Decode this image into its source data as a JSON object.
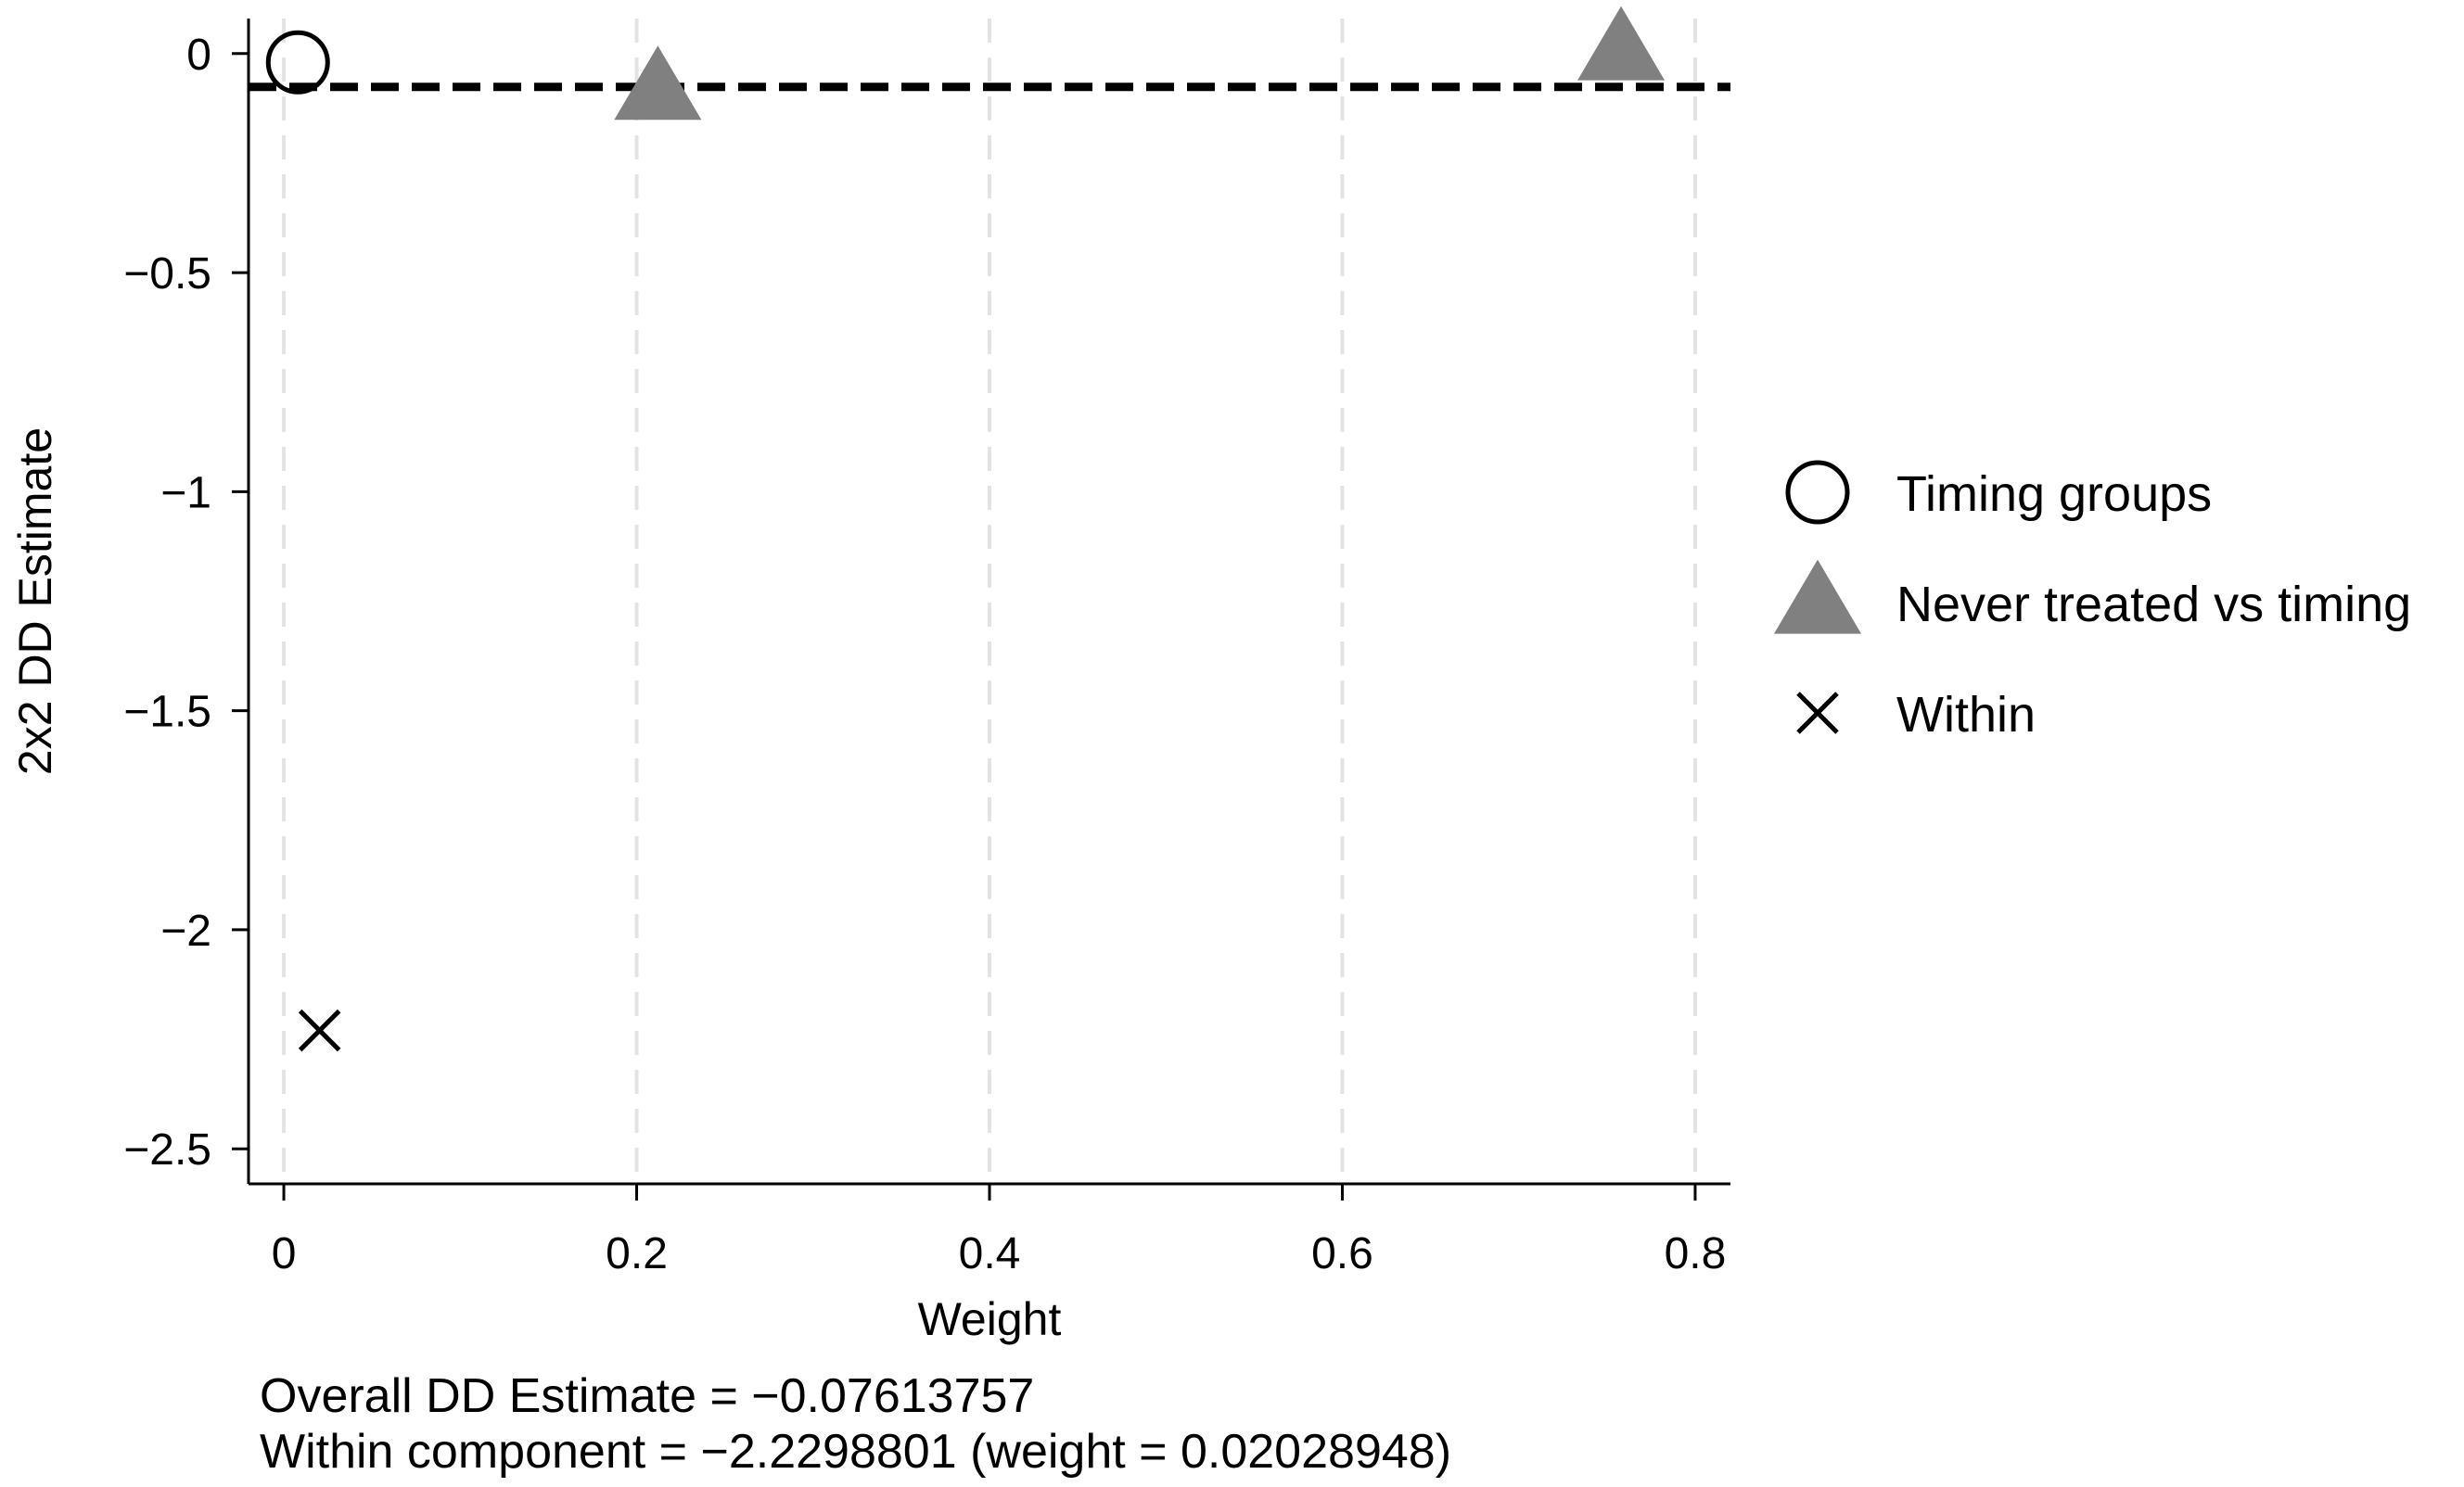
{
  "chart_data": {
    "type": "scatter",
    "xlabel": "Weight",
    "ylabel": "2x2 DD Estimate",
    "xlim": [
      -0.02,
      0.82
    ],
    "ylim": [
      -2.58,
      0.08
    ],
    "xticks": [
      0,
      0.2,
      0.4,
      0.6,
      0.8
    ],
    "xtick_labels": [
      "0",
      "0.2",
      "0.4",
      "0.6",
      "0.8"
    ],
    "yticks": [
      0,
      -0.5,
      -1,
      -1.5,
      -2,
      -2.5
    ],
    "ytick_labels": [
      "0",
      "−0.5",
      "−1",
      "−1.5",
      "−2",
      "−2.5"
    ],
    "grid": "vertical dashed",
    "legend_position": "right",
    "reference_line": {
      "y": -0.07613757,
      "style": "dashed"
    },
    "series": [
      {
        "name": "Timing groups",
        "marker": "hollow-circle",
        "color": "#000000",
        "points": [
          {
            "x": 0.008,
            "y": -0.02
          }
        ]
      },
      {
        "name": "Never treated vs timing",
        "marker": "triangle",
        "color": "#808080",
        "points": [
          {
            "x": 0.212,
            "y": -0.08
          },
          {
            "x": 0.758,
            "y": 0.01
          }
        ]
      },
      {
        "name": "Within",
        "marker": "x",
        "color": "#000000",
        "points": [
          {
            "x": 0.0203,
            "y": -2.2299
          }
        ]
      }
    ]
  },
  "notes": {
    "line1": "Overall DD Estimate = −0.07613757",
    "line2": "Within component = −2.2298801 (weight = 0.02028948)"
  }
}
